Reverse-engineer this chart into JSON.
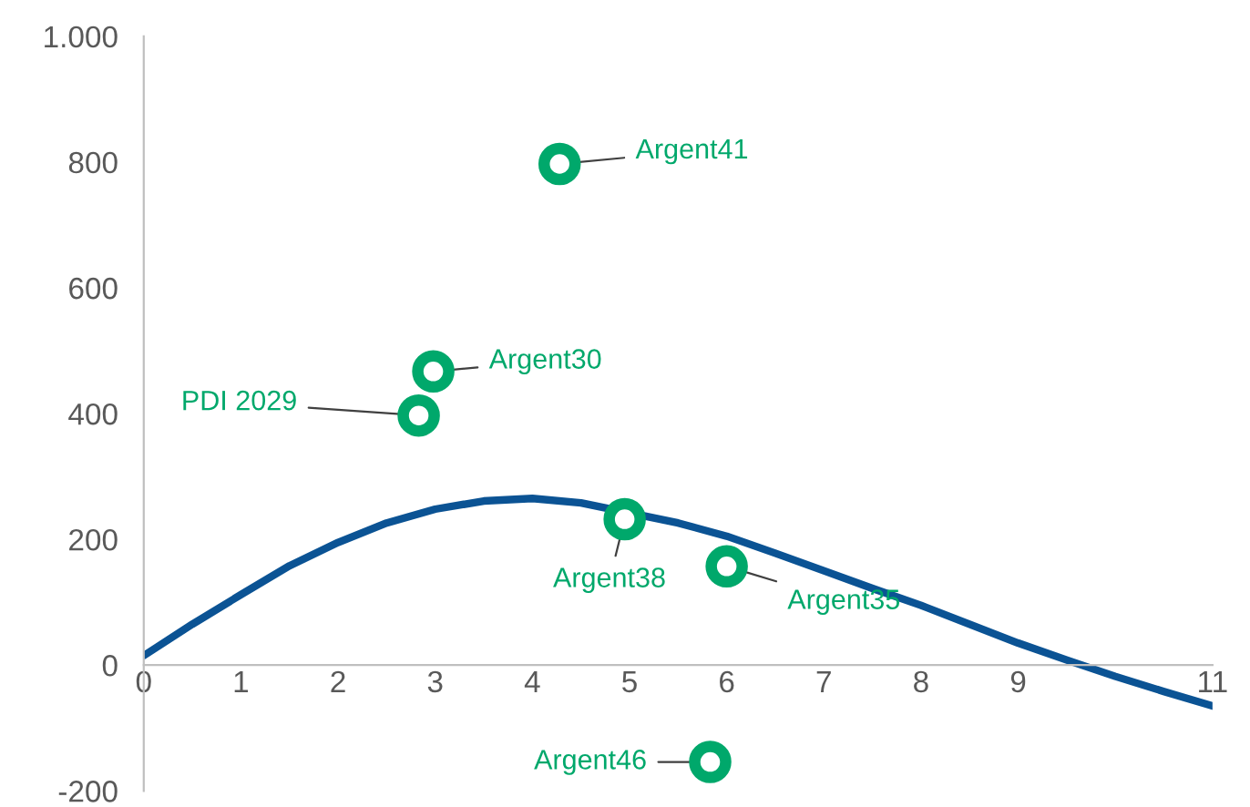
{
  "chart_data": {
    "type": "scatter",
    "series": [
      {
        "type": "line",
        "color": "#0b5394",
        "x": [
          0,
          0.5,
          1,
          1.5,
          2,
          2.5,
          3,
          3.5,
          4,
          4.5,
          5.5,
          6,
          6.5,
          7,
          7.5,
          8,
          8.5,
          9,
          9.5,
          10,
          10.5,
          11
        ],
        "values": [
          15,
          65,
          112,
          158,
          195,
          226,
          248,
          261,
          265,
          258,
          226,
          205,
          178,
          150,
          122,
          95,
          65,
          35,
          8,
          -18,
          -42,
          -65
        ]
      },
      {
        "color": "#00a86b",
        "marker": "circle",
        "x": [
          4.28,
          2.98,
          2.83,
          4.95,
          6.0,
          5.83
        ],
        "values": [
          797,
          467,
          397,
          232,
          157,
          -154
        ]
      }
    ],
    "annotations": [
      {
        "text": "Argent41",
        "x": 4.28,
        "y": 797
      },
      {
        "text": "Argent30",
        "x": 2.98,
        "y": 467
      },
      {
        "text": "PDI 2029",
        "x": 2.83,
        "y": 397
      },
      {
        "text": "Argent38",
        "x": 4.95,
        "y": 232
      },
      {
        "text": "Argent35",
        "x": 6.0,
        "y": 157
      },
      {
        "text": "Argent46",
        "x": 5.83,
        "y": -154
      }
    ],
    "xlim": [
      0,
      11
    ],
    "xticks": [
      0,
      1,
      2,
      3,
      4,
      5,
      6,
      7,
      8,
      9,
      11
    ],
    "ylim": [
      -200,
      1000
    ],
    "yticks": [
      {
        "value": -200,
        "label": "-200"
      },
      0,
      200,
      400,
      600,
      800,
      {
        "value": 1000,
        "label": "1.000"
      }
    ],
    "grid": false
  }
}
